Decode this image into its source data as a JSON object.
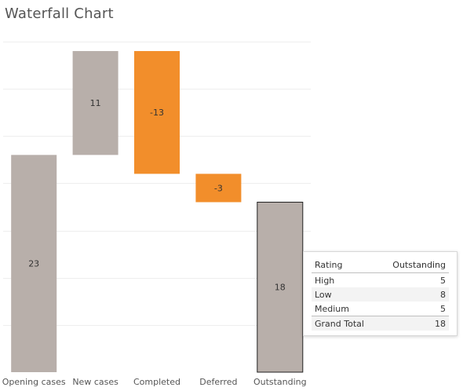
{
  "title": "Waterfall Chart",
  "colors": {
    "neutral": "#b8afaa",
    "decrease": "#f28e2b",
    "grid": "#eeeeee",
    "label": "#333333",
    "axis_label": "#555555"
  },
  "chart_data": {
    "type": "bar",
    "subtype": "waterfall",
    "title": "Waterfall Chart",
    "categories": [
      "Opening cases",
      "New cases",
      "Completed",
      "Deferred",
      "Outstanding"
    ],
    "values": [
      23,
      11,
      -13,
      -3,
      18
    ],
    "bar_kind": [
      "total",
      "delta",
      "delta",
      "delta",
      "total"
    ],
    "bar_colors": [
      "#b8afaa",
      "#b8afaa",
      "#f28e2b",
      "#f28e2b",
      "#b8afaa"
    ],
    "data_labels": [
      "23",
      "11",
      "-13",
      "-3",
      "18"
    ],
    "ylim": [
      0,
      35
    ],
    "grid": true,
    "highlighted_category": "Outstanding"
  },
  "tooltip": {
    "headers": [
      "Rating",
      "Outstanding"
    ],
    "rows": [
      {
        "label": "High",
        "value": "5"
      },
      {
        "label": "Low",
        "value": "8"
      },
      {
        "label": "Medium",
        "value": "5"
      }
    ],
    "total": {
      "label": "Grand Total",
      "value": "18"
    }
  }
}
